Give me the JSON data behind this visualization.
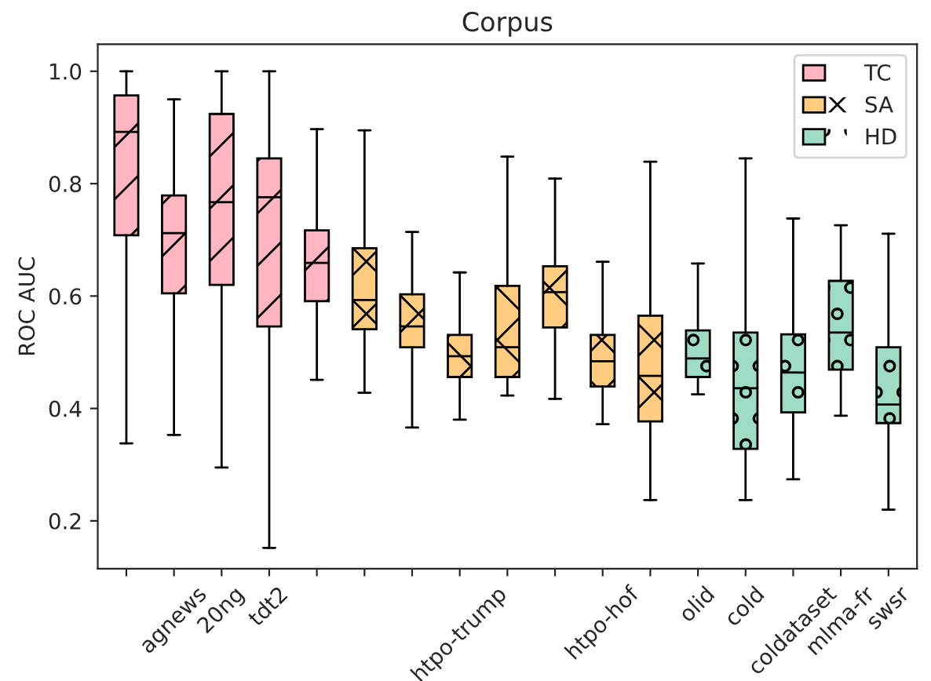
{
  "chart_data": {
    "type": "box",
    "title": "Corpus",
    "ylabel": "ROC AUC",
    "categories": [
      null,
      "agnews",
      "20ng",
      "tdt2",
      null,
      null,
      null,
      "htpo-trump",
      null,
      null,
      "htpo-hof",
      null,
      "olid",
      "cold",
      "coldataset",
      "mlma-fr",
      "swsr"
    ],
    "ylim": [
      0.115,
      1.048
    ],
    "yticks": [
      {
        "value": 0.2,
        "label": "0.2"
      },
      {
        "value": 0.4,
        "label": "0.4"
      },
      {
        "value": 0.6,
        "label": "0.6"
      },
      {
        "value": 0.8,
        "label": "0.8"
      },
      {
        "value": 1.0,
        "label": "1.0"
      }
    ],
    "legend": "top right",
    "grid": false,
    "series": [
      {
        "name": "TC",
        "color": "#ffb6c1",
        "boxes": [
          {
            "low": 0.338,
            "q1": 0.708,
            "median": 0.892,
            "q3": 0.957,
            "high": 1.0
          },
          {
            "low": 0.353,
            "q1": 0.605,
            "median": 0.712,
            "q3": 0.779,
            "high": 0.95
          },
          {
            "low": 0.295,
            "q1": 0.62,
            "median": 0.767,
            "q3": 0.924,
            "high": 1.0
          },
          {
            "low": 0.152,
            "q1": 0.546,
            "median": 0.776,
            "q3": 0.845,
            "high": 1.0
          },
          {
            "low": 0.451,
            "q1": 0.591,
            "median": 0.659,
            "q3": 0.717,
            "high": 0.897
          },
          null,
          null,
          null,
          null,
          null,
          null,
          null,
          null,
          null,
          null,
          null,
          null
        ]
      },
      {
        "name": "SA",
        "color": "#ffcc80",
        "boxes": [
          null,
          null,
          null,
          null,
          null,
          {
            "low": 0.428,
            "q1": 0.541,
            "median": 0.593,
            "q3": 0.685,
            "high": 0.895
          },
          {
            "low": 0.366,
            "q1": 0.509,
            "median": 0.546,
            "q3": 0.603,
            "high": 0.714
          },
          {
            "low": 0.38,
            "q1": 0.456,
            "median": 0.493,
            "q3": 0.531,
            "high": 0.642
          },
          {
            "low": 0.423,
            "q1": 0.456,
            "median": 0.509,
            "q3": 0.618,
            "high": 0.848
          },
          {
            "low": 0.417,
            "q1": 0.544,
            "median": 0.607,
            "q3": 0.653,
            "high": 0.809
          },
          {
            "low": 0.372,
            "q1": 0.439,
            "median": 0.484,
            "q3": 0.531,
            "high": 0.661
          },
          {
            "low": 0.237,
            "q1": 0.377,
            "median": 0.458,
            "q3": 0.565,
            "high": 0.839
          },
          null,
          null,
          null,
          null,
          null
        ]
      },
      {
        "name": "HD",
        "color": "#9fdcc4",
        "boxes": [
          null,
          null,
          null,
          null,
          null,
          null,
          null,
          null,
          null,
          null,
          null,
          null,
          {
            "low": 0.425,
            "q1": 0.456,
            "median": 0.489,
            "q3": 0.539,
            "high": 0.658
          },
          {
            "low": 0.237,
            "q1": 0.328,
            "median": 0.436,
            "q3": 0.535,
            "high": 0.845
          },
          {
            "low": 0.274,
            "q1": 0.393,
            "median": 0.464,
            "q3": 0.532,
            "high": 0.738
          },
          {
            "low": 0.387,
            "q1": 0.469,
            "median": 0.535,
            "q3": 0.627,
            "high": 0.726
          },
          {
            "low": 0.22,
            "q1": 0.374,
            "median": 0.407,
            "q3": 0.509,
            "high": 0.711
          }
        ]
      }
    ]
  }
}
